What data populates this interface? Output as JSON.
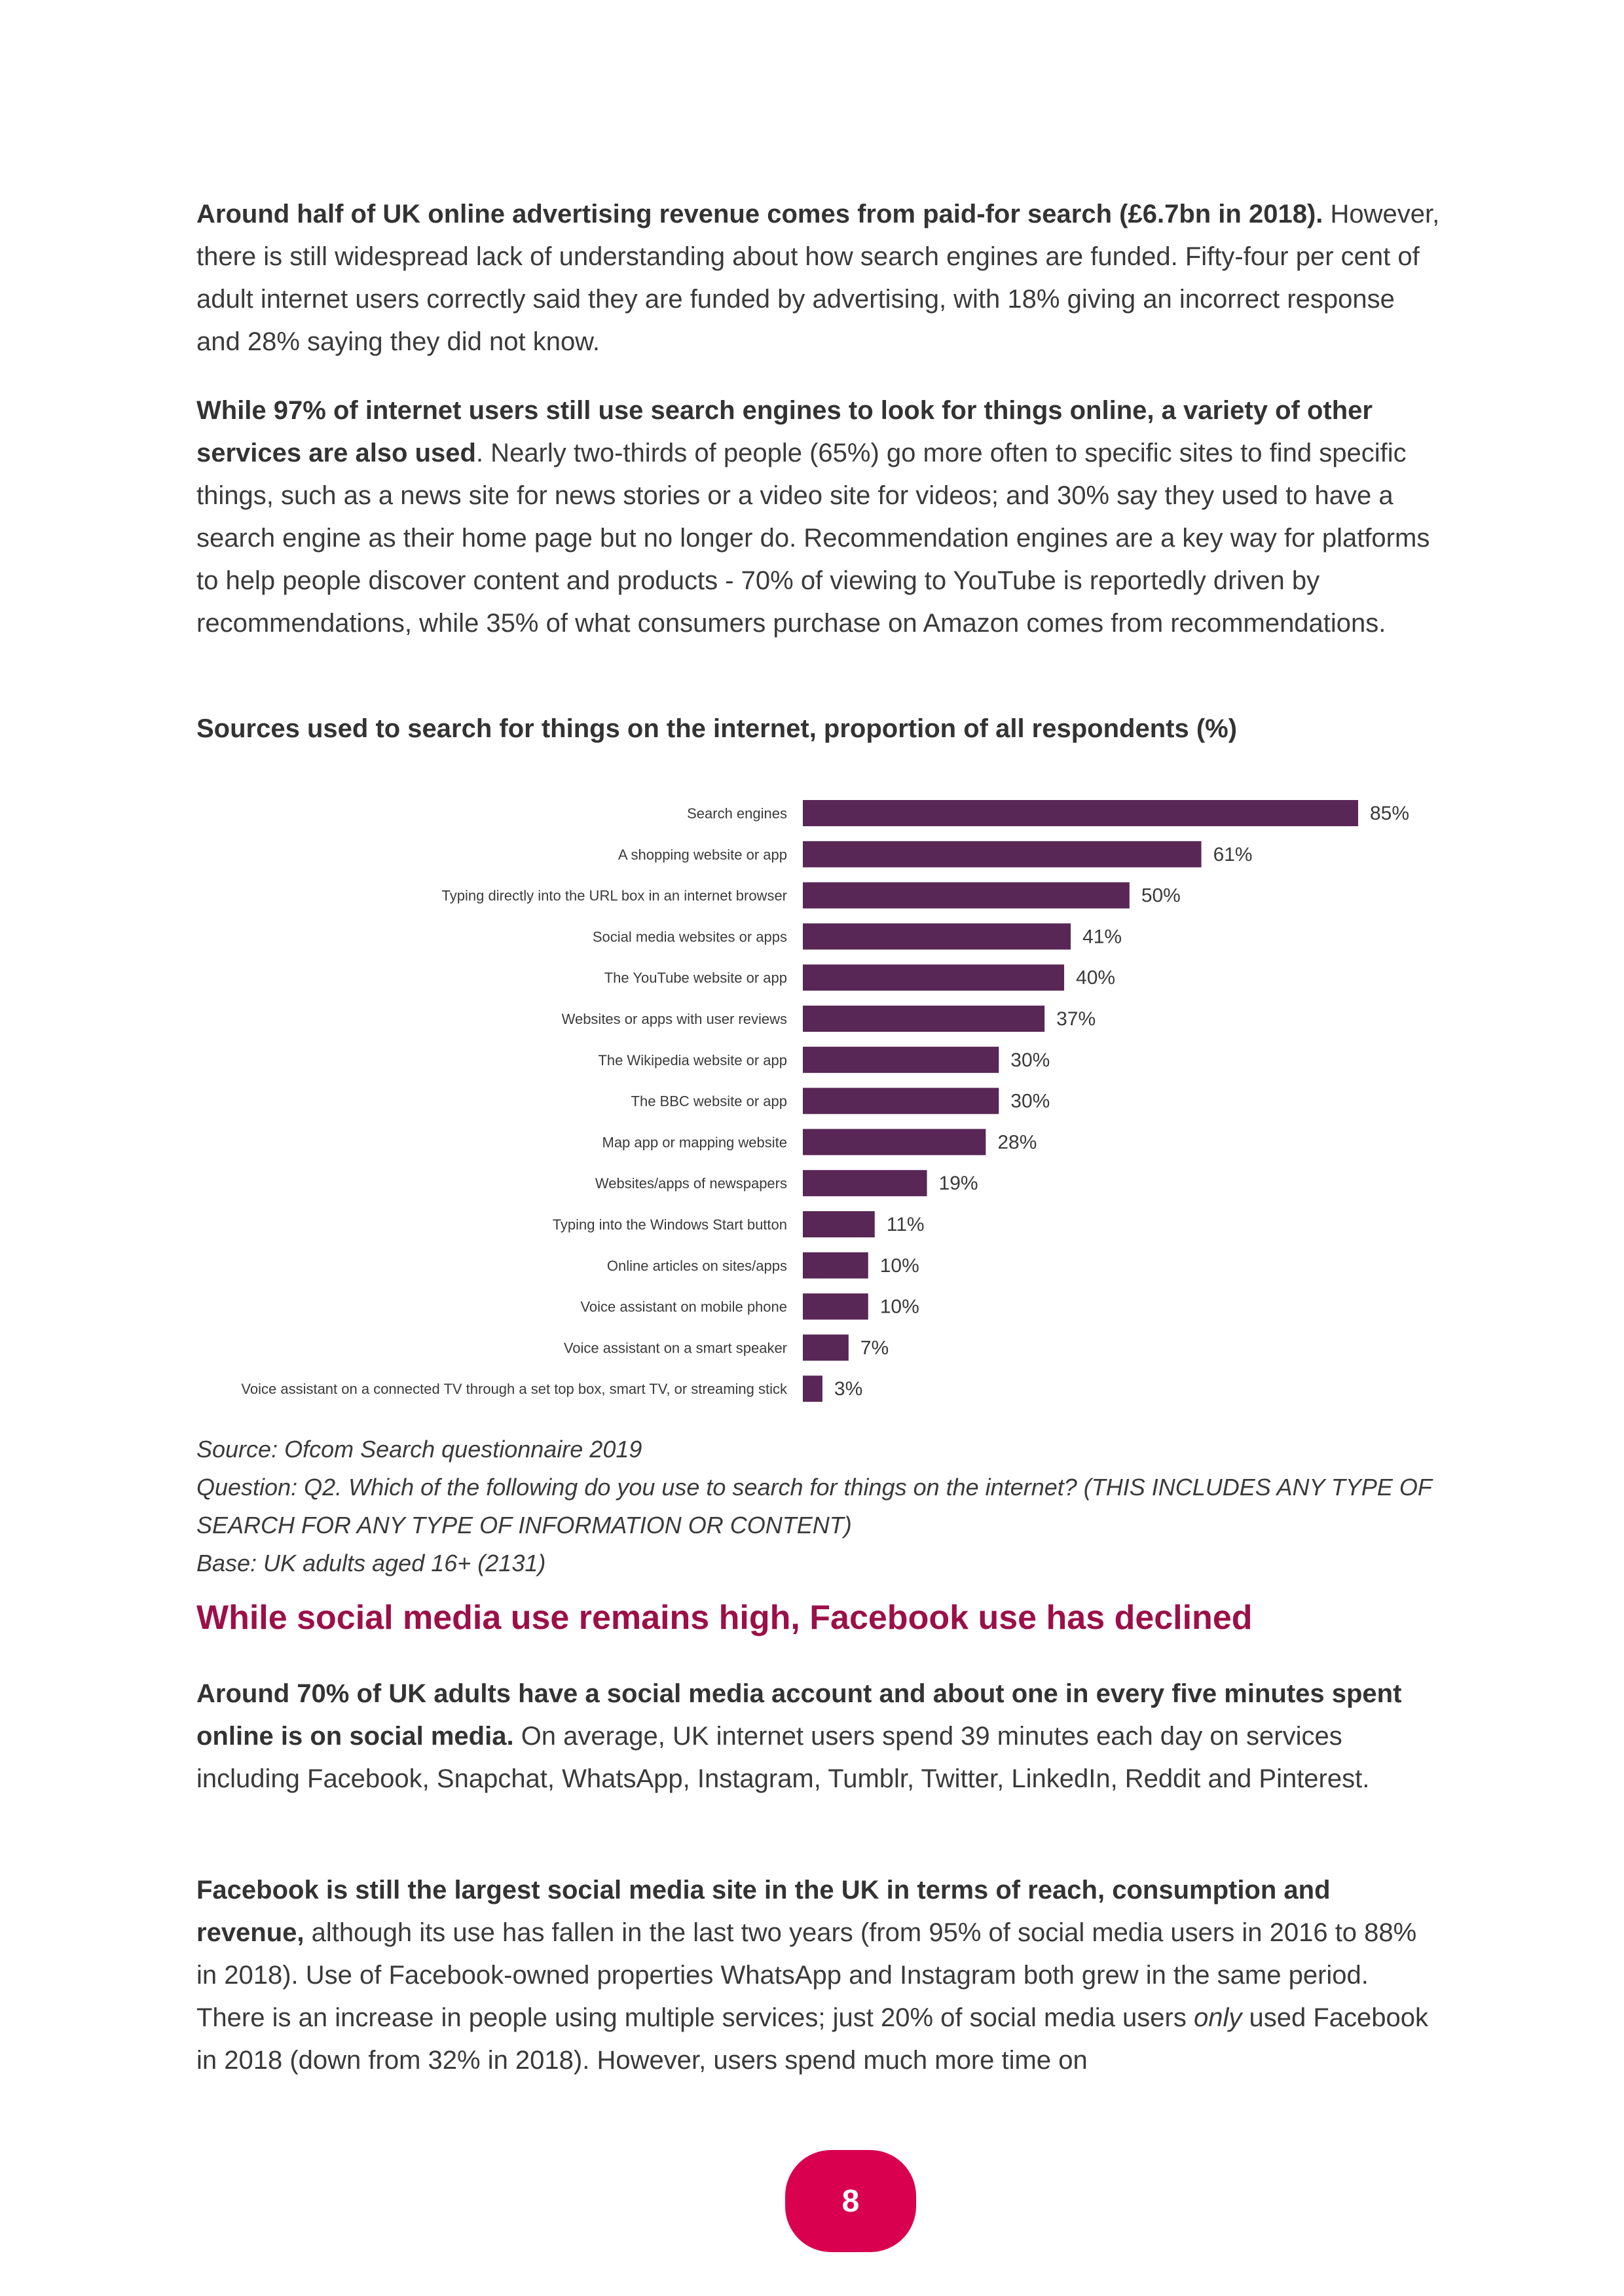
{
  "paragraphs": {
    "p1": {
      "bold": "Around half of UK online advertising revenue comes from paid-for search (£6.7bn in 2018).",
      "rest": " However, there is still widespread lack of understanding about how search engines are funded. Fifty-four per cent of adult internet users correctly said they are funded by advertising, with 18% giving an incorrect response and 28% saying they did not know."
    },
    "p2": {
      "bold": "While 97% of internet users still use search engines to look for things online, a variety of other services are also used",
      "rest": ". Nearly two-thirds of people (65%) go more often to specific sites to find specific things, such as a news site for news stories or a video site for videos; and 30% say they used to have a search engine as their home page but no longer do. Recommendation engines are a key way for platforms to help people discover content and products - 70% of viewing to YouTube is reportedly driven by recommendations, while 35% of what consumers purchase on Amazon comes from recommendations."
    },
    "p3": {
      "bold": "Around 70% of UK adults have a social media account and about one in every five minutes spent online is on social media.",
      "rest": " On average, UK internet users spend 39 minutes each day on services including Facebook, Snapchat, WhatsApp, Instagram, Tumblr, Twitter, LinkedIn, Reddit and Pinterest."
    },
    "p4": {
      "bold": "Facebook is still the largest social media site in the UK in terms of reach, consumption and revenue,",
      "rest": " although its use has fallen in the last two years (from 95% of social media users in 2016 to 88% in 2018). Use of Facebook-owned properties WhatsApp and Instagram both grew in the same period. There is an increase in people using multiple services; just 20% of social media users ",
      "italic": "only",
      "rest2": " used Facebook in 2018 (down from 32% in 2018). However, users spend much more time on"
    }
  },
  "chart_data": {
    "type": "bar",
    "orientation": "horizontal",
    "title": "Sources used to search for things on the internet, proportion of all respondents (%)",
    "categories": [
      "Search engines",
      "A shopping website or app",
      "Typing directly into the URL box in an internet browser",
      "Social media websites or apps",
      "The YouTube website or app",
      "Websites or apps with user reviews",
      "The Wikipedia website or app",
      "The BBC website or app",
      "Map app or mapping website",
      "Websites/apps of newspapers",
      "Typing into the Windows Start button",
      "Online articles on sites/apps",
      "Voice assistant on mobile phone",
      "Voice assistant on a smart speaker",
      "Voice assistant on a connected TV through a set top box, smart TV, or streaming stick"
    ],
    "values": [
      85,
      61,
      50,
      41,
      40,
      37,
      30,
      30,
      28,
      19,
      11,
      10,
      10,
      7,
      3
    ],
    "value_suffix": "%",
    "bar_color": "#582755",
    "xlim": [
      0,
      100
    ],
    "grid": false,
    "legend": "none"
  },
  "notes": {
    "source": "Source: Ofcom Search questionnaire 2019",
    "question": "Question: Q2. Which of the following do you use to search for things on the internet? (THIS INCLUDES ANY TYPE OF SEARCH FOR ANY TYPE OF INFORMATION OR CONTENT)",
    "base": "Base: UK adults aged 16+ (2131)"
  },
  "section_heading": "While social media use remains high, Facebook use has declined",
  "page_number": "8",
  "colors": {
    "heading": "#9b1048",
    "badge": "#d8004f",
    "bar": "#582755"
  }
}
